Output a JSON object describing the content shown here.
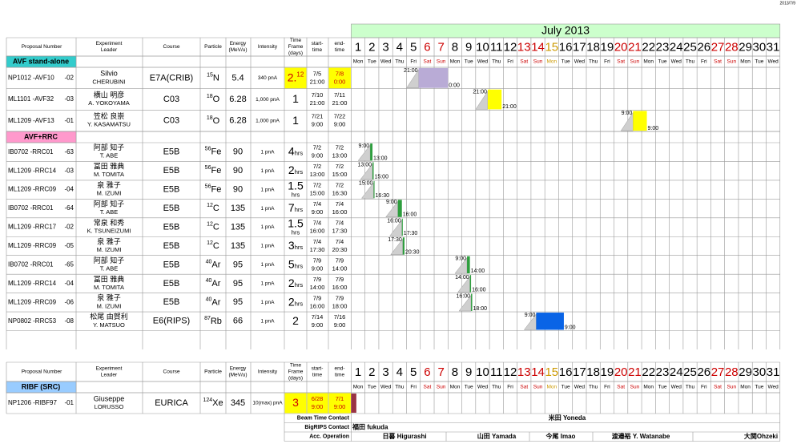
{
  "stamp": "2013/7/9",
  "month": "July 2013",
  "headers": {
    "proposal": [
      "Proposal Number"
    ],
    "leader": [
      "Experiment",
      "Leader"
    ],
    "course": [
      "Course"
    ],
    "particle": [
      "Particle"
    ],
    "energy": [
      "Energy",
      "(MeV/u)"
    ],
    "intensity": [
      "Intensity"
    ],
    "timeframe": [
      "Time",
      "Frame",
      "(days)"
    ],
    "start": [
      "start-",
      "time"
    ],
    "end": [
      "end-",
      "time"
    ]
  },
  "days": [
    1,
    2,
    3,
    4,
    5,
    6,
    7,
    8,
    9,
    10,
    11,
    12,
    13,
    14,
    15,
    16,
    17,
    18,
    19,
    20,
    21,
    22,
    23,
    24,
    25,
    26,
    27,
    28,
    29,
    30,
    31
  ],
  "weekdays": [
    "Mon",
    "Tue",
    "Wed",
    "Thu",
    "Fri",
    "Sat",
    "Sun",
    "Mon",
    "Tue",
    "Wed",
    "Thu",
    "Fri",
    "Sat",
    "Sun",
    "Mon",
    "Tue",
    "Wed",
    "Thu",
    "Fri",
    "Sat",
    "Sun",
    "Mon",
    "Tue",
    "Wed",
    "Thu",
    "Fri",
    "Sat",
    "Sun",
    "Mon",
    "Tue",
    "Wed"
  ],
  "day_colors": [
    "#000",
    "#000",
    "#000",
    "#000",
    "#000",
    "#cc0000",
    "#cc0000",
    "#000",
    "#000",
    "#000",
    "#000",
    "#000",
    "#cc0000",
    "#cc0000",
    "#cc9900",
    "#000",
    "#000",
    "#000",
    "#000",
    "#cc0000",
    "#cc0000",
    "#000",
    "#000",
    "#000",
    "#000",
    "#000",
    "#cc0000",
    "#cc0000",
    "#000",
    "#000",
    "#000"
  ],
  "sections": [
    {
      "title": "AVF stand-alone",
      "color": "#33cccc",
      "rows": [
        {
          "proposal": "NP1012 -AVF10",
          "suffix": "-02",
          "leader": [
            "Silvio",
            "CHERUBINI"
          ],
          "course": "E7A(CRIB)",
          "mass": "15",
          "element": "N",
          "energy": "5.4",
          "intensity": "340 pnA",
          "timeframe": "2.",
          "timeframe_sup": "12",
          "start": [
            "7/5",
            "21:00"
          ],
          "end": [
            "7/8",
            "0:00"
          ],
          "bar_color": "#b9abd6",
          "highlight": [
            "timeframe",
            "end"
          ]
        },
        {
          "proposal": "ML1101 -AVF32",
          "suffix": "-03",
          "leader": [
            "横山 明彦",
            "A. YOKOYAMA"
          ],
          "course": "C03",
          "mass": "18",
          "element": "O",
          "energy": "6.28",
          "intensity": "1,000 pnA",
          "timeframe": "1",
          "start": [
            "7/10",
            "21:00"
          ],
          "end": [
            "7/11",
            "21:00"
          ],
          "bar_color": "#ffff00"
        },
        {
          "proposal": "ML1209 -AVF13",
          "suffix": "-01",
          "leader": [
            "笠松 良崇",
            "Y. KASAMATSU"
          ],
          "course": "C03",
          "mass": "18",
          "element": "O",
          "energy": "6.28",
          "intensity": "1,000 pnA",
          "timeframe": "1",
          "start": [
            "7/21",
            "9:00"
          ],
          "end": [
            "7/22",
            "9:00"
          ],
          "bar_color": "#ffff00"
        }
      ]
    },
    {
      "title": "AVF+RRC",
      "color": "#ff99cc",
      "rows": [
        {
          "proposal": "IB0702 -RRC01",
          "suffix": "-63",
          "leader": [
            "阿部 知子",
            "T. ABE"
          ],
          "course": "E5B",
          "mass": "56",
          "element": "Fe",
          "energy": "90",
          "intensity": "1 pnA",
          "timeframe": "4",
          "timeframe_unit": "hrs",
          "start": [
            "7/2",
            "9:00"
          ],
          "end": [
            "7/2",
            "13:00"
          ],
          "bar_color": "#2e9e3e"
        },
        {
          "proposal": "ML1209 -RRC14",
          "suffix": "-03",
          "leader": [
            "冨田 雅典",
            "M. TOMITA"
          ],
          "course": "E5B",
          "mass": "56",
          "element": "Fe",
          "energy": "90",
          "intensity": "1 pnA",
          "timeframe": "2",
          "timeframe_unit": "hrs",
          "start": [
            "7/2",
            "13:00"
          ],
          "end": [
            "7/2",
            "15:00"
          ],
          "bar_color": "#2e9e3e"
        },
        {
          "proposal": "ML1209 -RRC09",
          "suffix": "-04",
          "leader": [
            "泉 雅子",
            "M. IZUMI"
          ],
          "course": "E5B",
          "mass": "56",
          "element": "Fe",
          "energy": "90",
          "intensity": "1 pnA",
          "timeframe": "1.5",
          "timeframe_unit": "hrs",
          "unit_position": "below",
          "start": [
            "7/2",
            "15:00"
          ],
          "end": [
            "7/2",
            "16:30"
          ],
          "bar_color": "#2e9e3e"
        },
        {
          "proposal": "IB0702 -RRC01",
          "suffix": "-64",
          "leader": [
            "阿部 知子",
            "T. ABE"
          ],
          "course": "E5B",
          "mass": "12",
          "element": "C",
          "energy": "135",
          "intensity": "1 pnA",
          "timeframe": "7",
          "timeframe_unit": "hrs",
          "start": [
            "7/4",
            "9:00"
          ],
          "end": [
            "7/4",
            "16:00"
          ],
          "bar_color": "#2e9e3e"
        },
        {
          "proposal": "ML1209 -RRC17",
          "suffix": "-02",
          "leader": [
            "常泉 和秀",
            "K. TSUNEIZUMI"
          ],
          "course": "E5B",
          "mass": "12",
          "element": "C",
          "energy": "135",
          "intensity": "1 pnA",
          "timeframe": "1.5",
          "timeframe_unit": "hrs",
          "unit_position": "below",
          "start": [
            "7/4",
            "16:00"
          ],
          "end": [
            "7/4",
            "17:30"
          ],
          "bar_color": "#2e9e3e"
        },
        {
          "proposal": "ML1209 -RRC09",
          "suffix": "-05",
          "leader": [
            "泉 雅子",
            "M. IZUMI"
          ],
          "course": "E5B",
          "mass": "12",
          "element": "C",
          "energy": "135",
          "intensity": "1 pnA",
          "timeframe": "3",
          "timeframe_unit": "hrs",
          "start": [
            "7/4",
            "17:30"
          ],
          "end": [
            "7/4",
            "20:30"
          ],
          "bar_color": "#2e9e3e"
        },
        {
          "proposal": "IB0702 -RRC01",
          "suffix": "-65",
          "leader": [
            "阿部 知子",
            "T. ABE"
          ],
          "course": "E5B",
          "mass": "40",
          "element": "Ar",
          "energy": "95",
          "intensity": "1 pnA",
          "timeframe": "5",
          "timeframe_unit": "hrs",
          "start": [
            "7/9",
            "9:00"
          ],
          "end": [
            "7/9",
            "14:00"
          ],
          "bar_color": "#2e9e3e"
        },
        {
          "proposal": "ML1209 -RRC14",
          "suffix": "-04",
          "leader": [
            "冨田 雅典",
            "M. TOMITA"
          ],
          "course": "E5B",
          "mass": "40",
          "element": "Ar",
          "energy": "95",
          "intensity": "1 pnA",
          "timeframe": "2",
          "timeframe_unit": "hrs",
          "start": [
            "7/9",
            "14:00"
          ],
          "end": [
            "7/9",
            "16:00"
          ],
          "bar_color": "#2e9e3e"
        },
        {
          "proposal": "ML1209 -RRC09",
          "suffix": "-06",
          "leader": [
            "泉 雅子",
            "M. IZUMI"
          ],
          "course": "E5B",
          "mass": "40",
          "element": "Ar",
          "energy": "95",
          "intensity": "1 pnA",
          "timeframe": "2",
          "timeframe_unit": "hrs",
          "start": [
            "7/9",
            "16:00"
          ],
          "end": [
            "7/9",
            "18:00"
          ],
          "bar_color": "#2e9e3e"
        },
        {
          "proposal": "NP0802 -RRC53",
          "suffix": "-08",
          "leader": [
            "松尾 由賀利",
            "Y. MATSUO"
          ],
          "course": "E6(RIPS)",
          "mass": "87",
          "element": "Rb",
          "energy": "66",
          "intensity": "1 pnA",
          "timeframe": "2",
          "start": [
            "7/14",
            "9:00"
          ],
          "end": [
            "7/16",
            "9:00"
          ],
          "bar_color": "#0a64e6"
        }
      ]
    },
    {
      "title": "RIBF (SRC)",
      "color": "#99ccff",
      "rows": [
        {
          "proposal": "NP1206 -RIBF97",
          "suffix": "-01",
          "leader": [
            "Giuseppe",
            "LORUSSO"
          ],
          "course": "EURICA",
          "mass": "124",
          "element": "Xe",
          "energy": "345",
          "intensity": "10(max) pnA",
          "timeframe": "3",
          "start": [
            "6/28",
            "9:00"
          ],
          "end": [
            "7/1",
            "9:00"
          ],
          "bar_color": "#993344",
          "bar_labels": false,
          "highlight": [
            "timeframe",
            "start",
            "end"
          ]
        }
      ]
    }
  ],
  "contacts": [
    {
      "label": "Beam Time Contact",
      "names": [
        "米田 Yoneda"
      ]
    },
    {
      "label": "BigRIPS Contact",
      "names": [
        "福田 fukuda"
      ]
    },
    {
      "label": "Acc. Operation",
      "names": [
        "日暮 Higurashi",
        "山田 Yamada",
        "今尾 Imao",
        "渡邉裕 Y. Watanabe",
        "大関Ohzeki"
      ]
    }
  ]
}
